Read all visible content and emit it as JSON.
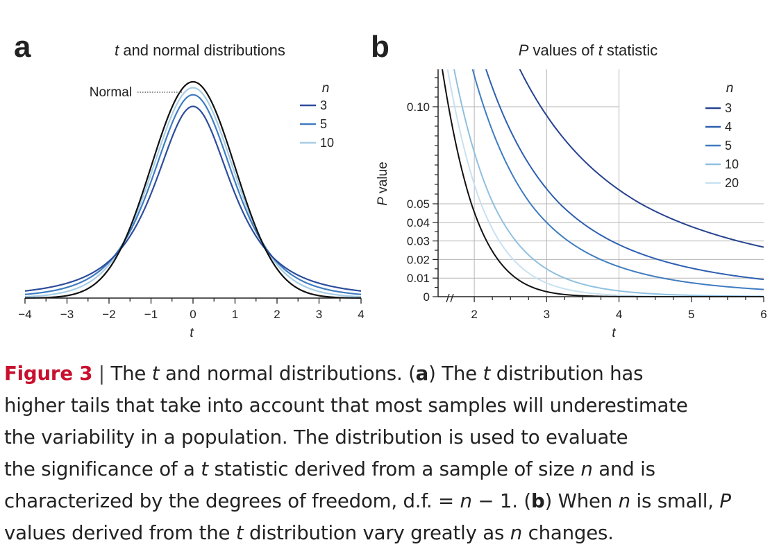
{
  "panels": {
    "a": {
      "letter": "a",
      "title_italic": "t",
      "title_rest": " and normal distributions",
      "xlabel": "t",
      "normal_label": "Normal",
      "legend_title": "n"
    },
    "b": {
      "letter": "b",
      "title_italic_1": "P",
      "title_mid": " values of ",
      "title_italic_2": "t",
      "title_rest": " statistic",
      "xlabel": "t",
      "ylabel_italic": "P",
      "ylabel_rest": " value",
      "legend_title": "n"
    }
  },
  "chart_data": [
    {
      "type": "line",
      "panel": "a",
      "title": "t and normal distributions",
      "xlabel": "t",
      "ylabel": "",
      "xlim": [
        -4,
        4
      ],
      "xticks": [
        -4,
        -3,
        -2,
        -1,
        0,
        1,
        2,
        3,
        4
      ],
      "xtick_labels": [
        "−4",
        "−3",
        "−2",
        "−1",
        "0",
        "1",
        "2",
        "3",
        "4"
      ],
      "legend_title": "n",
      "legend_position": "top-right",
      "series": [
        {
          "name": "3",
          "df": 2,
          "color": "#2d4d9c",
          "function": "Student t density"
        },
        {
          "name": "5",
          "df": 4,
          "color": "#3f7cc0",
          "function": "Student t density"
        },
        {
          "name": "10",
          "df": 9,
          "color": "#a7cde6",
          "function": "Student t density"
        },
        {
          "name": "Normal",
          "color": "#111111",
          "function": "standard normal density"
        }
      ]
    },
    {
      "type": "line",
      "panel": "b",
      "title": "P values of t statistic",
      "xlabel": "t",
      "ylabel": "P value",
      "xlim": [
        1.5,
        6
      ],
      "ylim": [
        0,
        0.12
      ],
      "xticks": [
        2,
        3,
        4,
        5,
        6
      ],
      "xtick_labels": [
        "2",
        "3",
        "4",
        "5",
        "6"
      ],
      "yticks": [
        0,
        0.01,
        0.02,
        0.03,
        0.04,
        0.05,
        0.1
      ],
      "ytick_labels": [
        "0",
        "0.01",
        "0.02",
        "0.03",
        "0.04",
        "0.05",
        "0.10"
      ],
      "axis_break": "y axis broken between 0.05 and 0.10",
      "grid": true,
      "legend_title": "n",
      "legend_position": "top-right",
      "series": [
        {
          "name": "3",
          "df": 2,
          "color": "#27438f",
          "function": "two-sided P value"
        },
        {
          "name": "4",
          "df": 3,
          "color": "#2e5fb0",
          "function": "two-sided P value"
        },
        {
          "name": "5",
          "df": 4,
          "color": "#3f7cc0",
          "function": "two-sided P value"
        },
        {
          "name": "10",
          "df": 9,
          "color": "#8fc0e0",
          "function": "two-sided P value"
        },
        {
          "name": "20",
          "df": 19,
          "color": "#c8e1f1",
          "function": "two-sided P value"
        },
        {
          "name": "",
          "color": "#111111",
          "function": "normal two-sided P value"
        }
      ]
    }
  ],
  "caption": {
    "figure_label": "Figure 3",
    "separator": " | ",
    "s1": "The ",
    "s1_it": "t",
    "s2": " and normal distributions. (",
    "s2_b": "a",
    "s3": ") The ",
    "s3_it": "t",
    "s4": " distribution has",
    "line2": "higher tails that take into account that most samples will underestimate",
    "line3": "the variability in a population. The distribution is used to evaluate",
    "l4a": "the significance of a ",
    "l4_it": "t",
    "l4b": " statistic derived from a sample of size ",
    "l4_it2": "n",
    "l4c": " and is",
    "l5a": "characterized by the degrees of freedom, d.f. = ",
    "l5_it": "n",
    "l5b": " − 1. (",
    "l5_b": "b",
    "l5c": ") When ",
    "l5_it2": "n",
    "l5d": " is small, ",
    "l5_it3": "P",
    "l6a": "values derived from the ",
    "l6_it": "t",
    "l6b": " distribution vary greatly as ",
    "l6_it2": "n",
    "l6c": " changes."
  }
}
